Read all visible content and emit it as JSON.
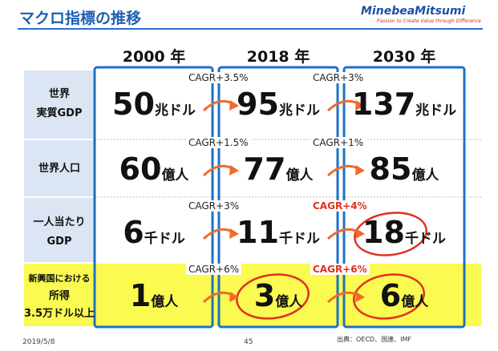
{
  "header": {
    "title": "マクロ指標の推移",
    "logo": "MinebeaMitsumi",
    "tagline": "Passion to Create Value through Difference"
  },
  "table": {
    "columns": [
      "2000 年",
      "2018 年",
      "2030 年"
    ],
    "rows": [
      {
        "label": [
          "世界",
          "実質GDP"
        ],
        "cells": [
          {
            "number": "50",
            "unit": "兆ドル"
          },
          {
            "number": "95",
            "unit": "兆ドル"
          },
          {
            "number": "137",
            "unit": "兆ドル"
          }
        ],
        "cagr": [
          {
            "text": "CAGR+3.5%",
            "red": false
          },
          {
            "text": "CAGR+3%",
            "red": false
          }
        ]
      },
      {
        "label": [
          "世界人口"
        ],
        "cells": [
          {
            "number": "60",
            "unit": "億人"
          },
          {
            "number": "77",
            "unit": "億人"
          },
          {
            "number": "85",
            "unit": "億人"
          }
        ],
        "cagr": [
          {
            "text": "CAGR+1.5%",
            "red": false
          },
          {
            "text": "CAGR+1%",
            "red": false
          }
        ]
      },
      {
        "label": [
          "一人当たり",
          "GDP"
        ],
        "cells": [
          {
            "number": "6",
            "unit": "千ドル"
          },
          {
            "number": "11",
            "unit": "千ドル"
          },
          {
            "number": "18",
            "unit": "千ドル"
          }
        ],
        "cagr": [
          {
            "text": "CAGR+3%",
            "red": false
          },
          {
            "text": "CAGR+4%",
            "red": true
          }
        ]
      },
      {
        "label": [
          "新興国における",
          "所得",
          "3.5万ドル以上"
        ],
        "cells": [
          {
            "number": "1",
            "unit": "億人"
          },
          {
            "number": "3",
            "unit": "億人"
          },
          {
            "number": "6",
            "unit": "億人"
          }
        ],
        "cagr": [
          {
            "text": "CAGR+6%",
            "red": false
          },
          {
            "text": "CAGR+6%",
            "red": true
          }
        ]
      }
    ]
  },
  "footer": {
    "date": "2019/5/8",
    "page": "45",
    "source": "出典：OECD、国連、IMF"
  }
}
